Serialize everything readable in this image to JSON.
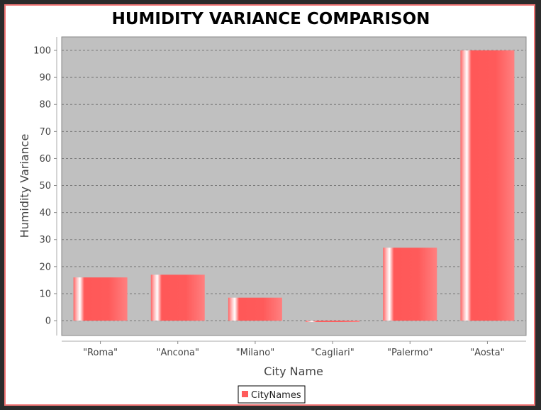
{
  "chart_data": {
    "type": "bar",
    "title": "HUMIDITY VARIANCE COMPARISON",
    "xlabel": "City Name",
    "ylabel": "Humidity Variance",
    "categories": [
      "\"Roma\"",
      "\"Ancona\"",
      "\"Milano\"",
      "\"Cagliari\"",
      "\"Palermo\"",
      "\"Aosta\""
    ],
    "series": [
      {
        "name": "CityNames",
        "values": [
          16,
          17,
          8.5,
          -0.5,
          27,
          100
        ]
      }
    ],
    "ylim": [
      -5.5,
      105
    ],
    "yticks": [
      0,
      10,
      20,
      30,
      40,
      50,
      60,
      70,
      80,
      90,
      100
    ],
    "grid": true,
    "legend_position": "bottom",
    "colors": {
      "bar": "#ff5b5b",
      "plot_background": "#c0c0c0",
      "gridline": "#7a7a7a"
    }
  }
}
